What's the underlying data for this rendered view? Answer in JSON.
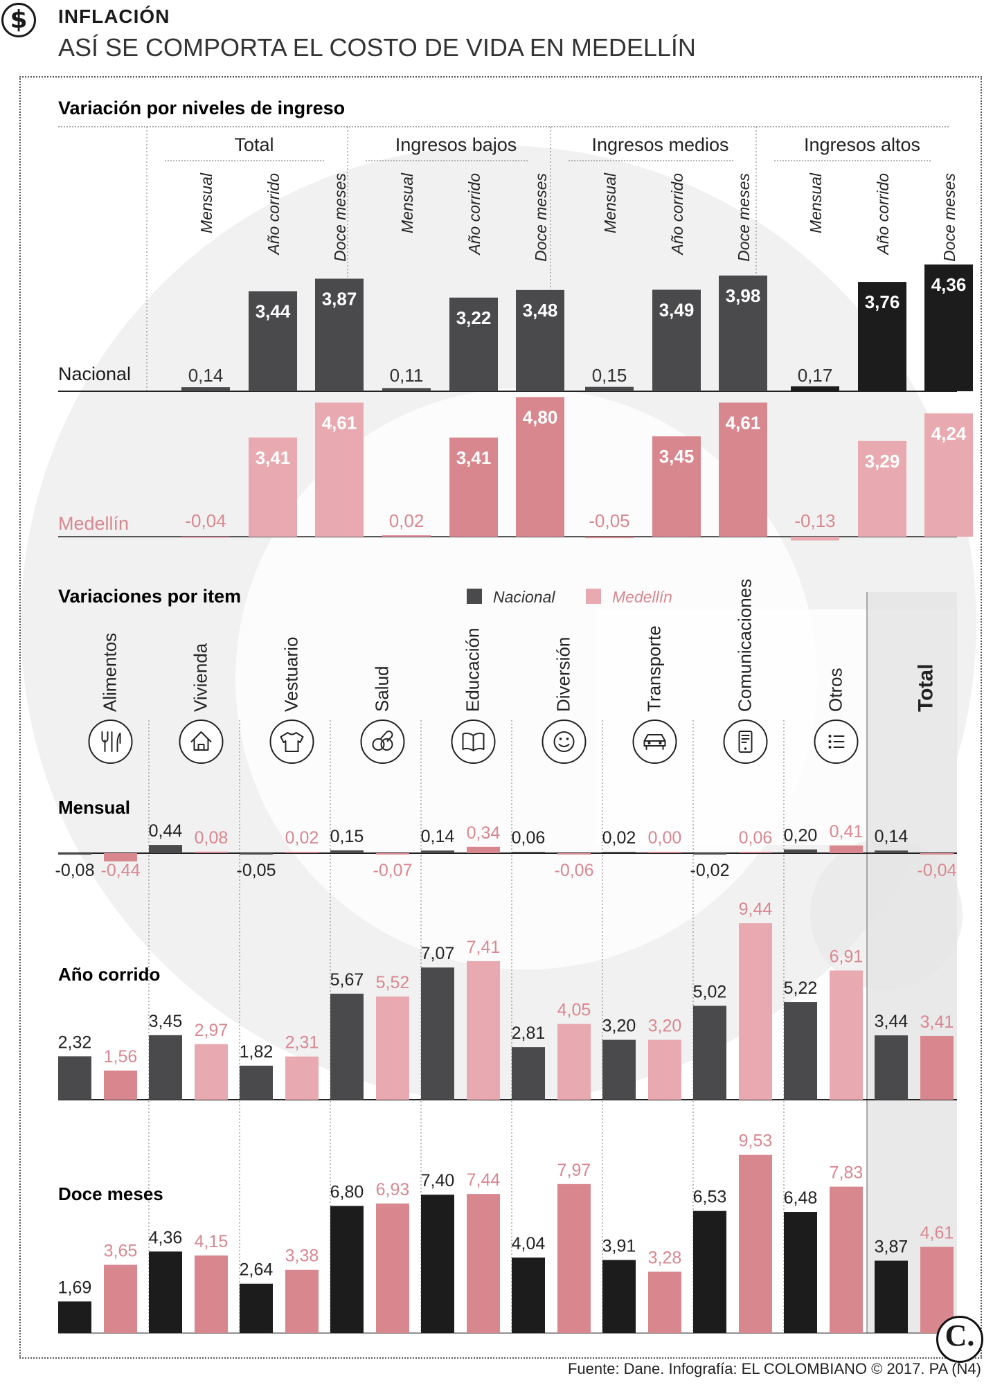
{
  "header": {
    "kicker": "INFLACIÓN",
    "title": "ASÍ SE COMPORTA EL COSTO DE VIDA EN MEDELLÍN",
    "icon": "dollar-icon"
  },
  "source": "Fuente: Dane. Infografía: EL COLOMBIANO © 2017. PA (N4)",
  "logo": "C.",
  "colors": {
    "nacional": "#4a4a4c",
    "nacional_dark": "#1c1c1c",
    "medellin": "#d9878f",
    "medellin_light": "#e8aab0",
    "watermark": "#e6e6e6",
    "total_band": "#e5e5e5"
  },
  "chart_data": [
    {
      "type": "bar",
      "title": "Variación por niveles de ingreso",
      "groups": [
        "Total",
        "Ingresos bajos",
        "Ingresos medios",
        "Ingresos altos"
      ],
      "subcategories": [
        "Mensual",
        "Año corrido",
        "Doce meses"
      ],
      "series": [
        {
          "name": "Nacional",
          "values": [
            [
              0.14,
              3.44,
              3.87
            ],
            [
              0.11,
              3.22,
              3.48
            ],
            [
              0.15,
              3.49,
              3.98
            ],
            [
              0.17,
              3.76,
              4.36
            ]
          ],
          "labels": [
            [
              "0,14",
              "3,44",
              "3,87"
            ],
            [
              "0,11",
              "3,22",
              "3,48"
            ],
            [
              "0,15",
              "3,49",
              "3,98"
            ],
            [
              "0,17",
              "3,76",
              "4,36"
            ]
          ]
        },
        {
          "name": "Medellín",
          "values": [
            [
              -0.04,
              3.41,
              4.61
            ],
            [
              0.02,
              3.41,
              4.8
            ],
            [
              -0.05,
              3.45,
              4.61
            ],
            [
              -0.13,
              3.29,
              4.24
            ]
          ],
          "labels": [
            [
              "-0,04",
              "3,41",
              "4,61"
            ],
            [
              "0,02",
              "3,41",
              "4,80"
            ],
            [
              "-0,05",
              "3,45",
              "4,61"
            ],
            [
              "-0,13",
              "3,29",
              "4,24"
            ]
          ]
        }
      ]
    },
    {
      "type": "bar",
      "title": "Variaciones por item",
      "legend": [
        "Nacional",
        "Medellín"
      ],
      "categories": [
        "Alimentos",
        "Vivienda",
        "Vestuario",
        "Salud",
        "Educación",
        "Diversión",
        "Transporte",
        "Comunicaciones",
        "Otros",
        "Total"
      ],
      "category_icons": [
        "utensils-icon",
        "house-icon",
        "shirt-icon",
        "pills-icon",
        "book-icon",
        "smiley-icon",
        "car-icon",
        "phone-icon",
        "list-icon",
        ""
      ],
      "panels": [
        {
          "name": "Mensual",
          "nacional": [
            -0.08,
            0.44,
            -0.05,
            0.15,
            0.14,
            0.06,
            0.02,
            -0.02,
            0.2,
            0.14
          ],
          "nacional_labels": [
            "-0,08",
            "0,44",
            "-0,05",
            "0,15",
            "0,14",
            "0,06",
            "0,02",
            "-0,02",
            "0,20",
            "0,14"
          ],
          "medellin": [
            -0.44,
            0.08,
            0.02,
            -0.07,
            0.34,
            -0.06,
            0.0,
            0.06,
            0.41,
            -0.04
          ],
          "medellin_labels": [
            "-0,44",
            "0,08",
            "0,02",
            "-0,07",
            "0,34",
            "-0,06",
            "0,00",
            "0,06",
            "0,41",
            "-0,04"
          ]
        },
        {
          "name": "Año corrido",
          "nacional": [
            2.32,
            3.45,
            1.82,
            5.67,
            7.07,
            2.81,
            3.2,
            5.02,
            5.22,
            3.44
          ],
          "nacional_labels": [
            "2,32",
            "3,45",
            "1,82",
            "5,67",
            "7,07",
            "2,81",
            "3,20",
            "5,02",
            "5,22",
            "3,44"
          ],
          "medellin": [
            1.56,
            2.97,
            2.31,
            5.52,
            7.41,
            4.05,
            3.2,
            9.44,
            6.91,
            3.41
          ],
          "medellin_labels": [
            "1,56",
            "2,97",
            "2,31",
            "5,52",
            "7,41",
            "4,05",
            "3,20",
            "9,44",
            "6,91",
            "3,41"
          ]
        },
        {
          "name": "Doce meses",
          "nacional": [
            1.69,
            4.36,
            2.64,
            6.8,
            7.4,
            4.04,
            3.91,
            6.53,
            6.48,
            3.87
          ],
          "nacional_labels": [
            "1,69",
            "4,36",
            "2,64",
            "6,80",
            "7,40",
            "4,04",
            "3,91",
            "6,53",
            "6,48",
            "3,87"
          ],
          "medellin": [
            3.65,
            4.15,
            3.38,
            6.93,
            7.44,
            7.97,
            3.28,
            9.53,
            7.83,
            4.61
          ],
          "medellin_labels": [
            "3,65",
            "4,15",
            "3,38",
            "6,93",
            "7,44",
            "7,97",
            "3,28",
            "9,53",
            "7,83",
            "4,61"
          ]
        }
      ]
    }
  ]
}
